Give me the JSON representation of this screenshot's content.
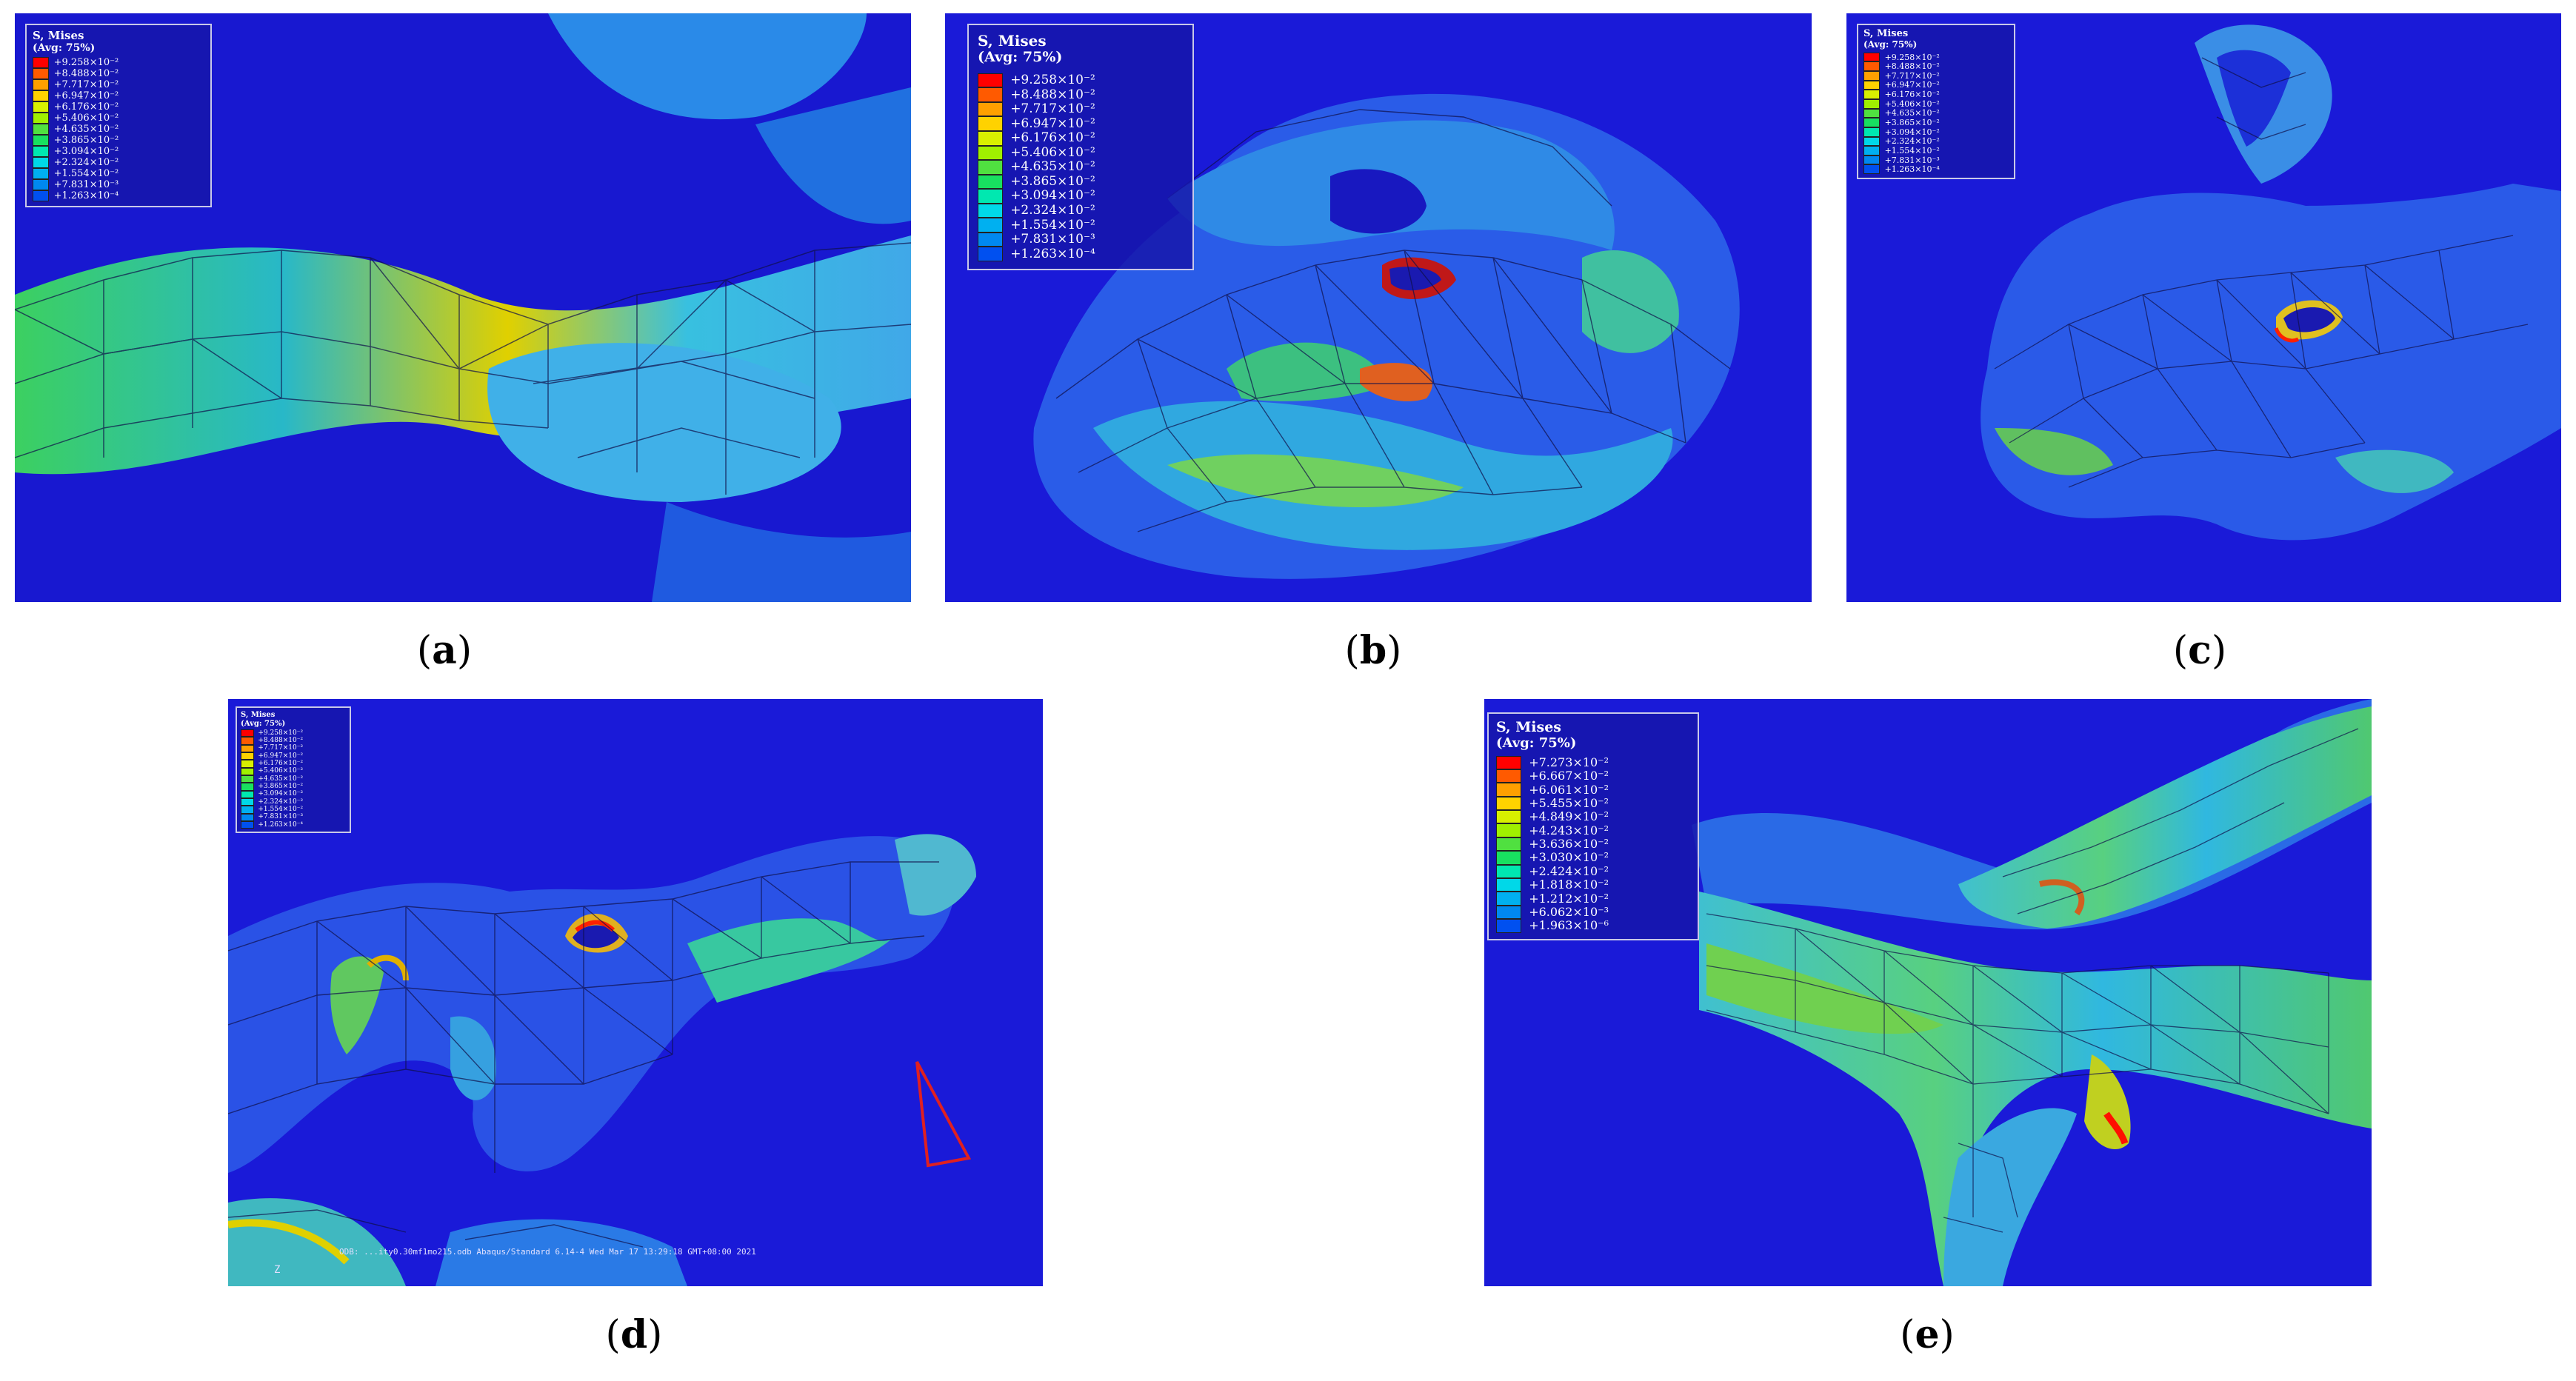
{
  "legend_title": "S, Mises",
  "legend_subtitle": "(Avg: 75%)",
  "legend_colors": [
    "#ff0000",
    "#ff5a00",
    "#ffa000",
    "#ffd200",
    "#d8f000",
    "#a0f000",
    "#50e040",
    "#18e060",
    "#00e8b0",
    "#00d8e8",
    "#00b0f0",
    "#0088f0",
    "#0050f0",
    "#0020e8"
  ],
  "scale_common": [
    "+9.258×10⁻²",
    "+8.488×10⁻²",
    "+7.717×10⁻²",
    "+6.947×10⁻²",
    "+6.176×10⁻²",
    "+5.406×10⁻²",
    "+4.635×10⁻²",
    "+3.865×10⁻²",
    "+3.094×10⁻²",
    "+2.324×10⁻²",
    "+1.554×10⁻²",
    "+7.831×10⁻³",
    "+1.263×10⁻⁴"
  ],
  "scale_e": [
    "+7.273×10⁻²",
    "+6.667×10⁻²",
    "+6.061×10⁻²",
    "+5.455×10⁻²",
    "+4.849×10⁻²",
    "+4.243×10⁻²",
    "+3.636×10⁻²",
    "+3.030×10⁻²",
    "+2.424×10⁻²",
    "+1.818×10⁻²",
    "+1.212×10⁻²",
    "+6.062×10⁻³",
    "+1.963×10⁻⁶"
  ],
  "captions": {
    "a": "a",
    "b": "b",
    "c": "c",
    "d": "d",
    "e": "e"
  },
  "footer_d": "ODB: ...ity0.30mf1mo215.odb   Abaqus/Standard 6.14-4   Wed Mar 17 13:29:18 GMT+08:00 2021",
  "axis_d": "Z"
}
